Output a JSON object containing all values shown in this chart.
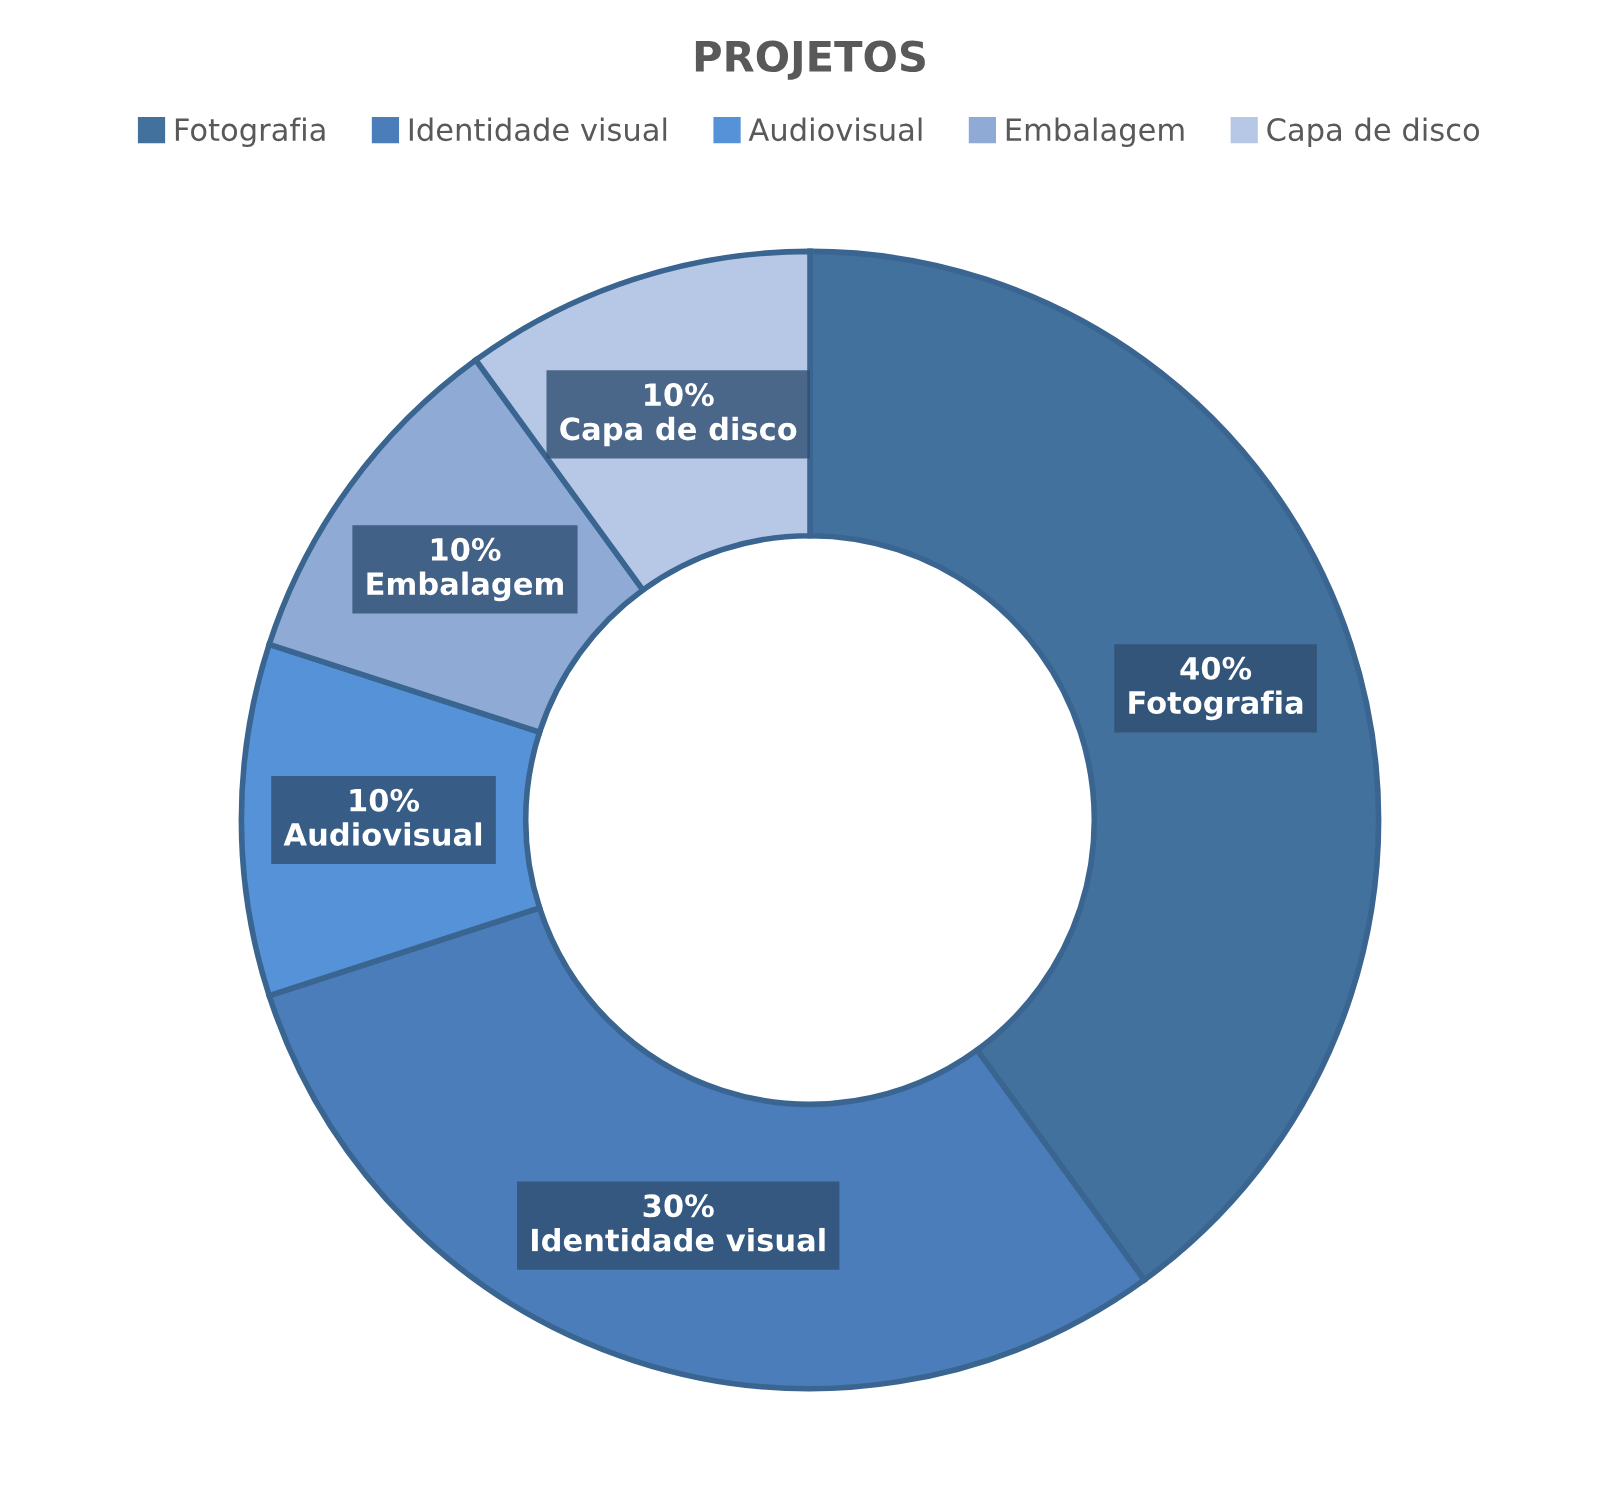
{
  "chart_data": {
    "type": "donut",
    "title": "PROJETOS",
    "categories": [
      "Fotografia",
      "Identidade visual",
      "Audiovisual",
      "Embalagem",
      "Capa de disco"
    ],
    "values": [
      40,
      30,
      10,
      10,
      10
    ],
    "value_labels": [
      "40%",
      "30%",
      "10%",
      "10%",
      "10%"
    ],
    "colors": [
      "#41719c",
      "#4a7dba",
      "#5592d8",
      "#8eaad5",
      "#b6c8e5"
    ],
    "legend": "top"
  }
}
